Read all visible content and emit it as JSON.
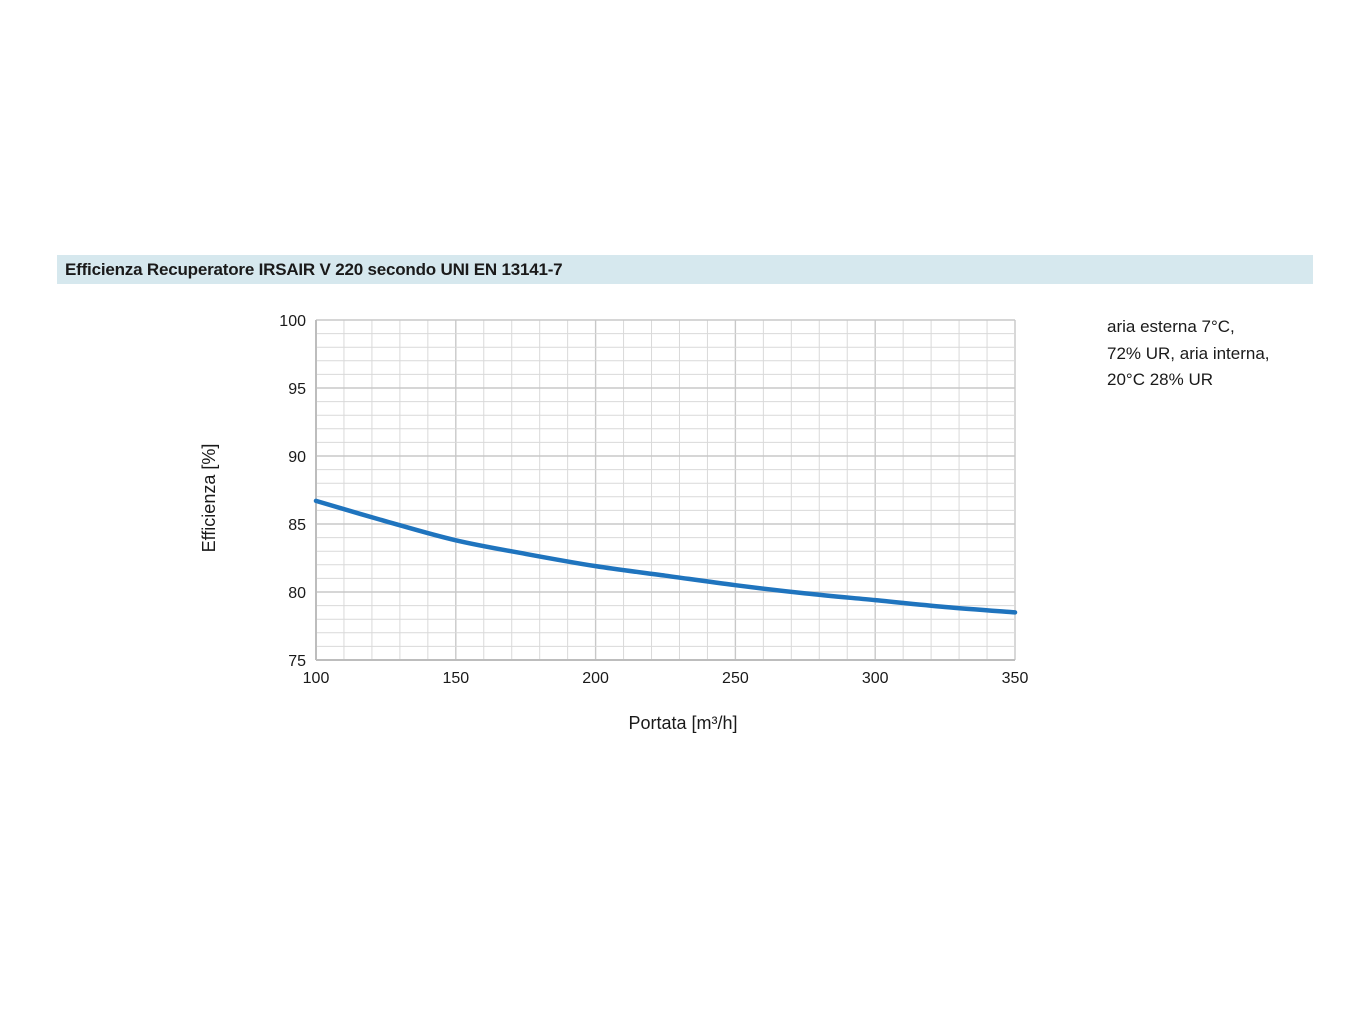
{
  "header": {
    "title": "Efficienza Recuperatore IRSAIR V 220 secondo UNI EN 13141-7"
  },
  "note": {
    "lines": [
      "aria esterna 7°C,",
      "72% UR, aria interna,",
      "20°C 28% UR"
    ]
  },
  "colors": {
    "series": "#1f74be",
    "grid_major": "#c8c8c8",
    "grid_minor": "#d9d9d9",
    "title_band": "#d6e8ee"
  },
  "chart_data": {
    "type": "line",
    "title": "Efficienza Recuperatore IRSAIR V 220 secondo UNI EN 13141-7",
    "xlabel": "Portata [m³/h]",
    "ylabel": "Efficienza [%]",
    "xlim": [
      100,
      350
    ],
    "ylim": [
      75,
      100
    ],
    "xticks": [
      100,
      150,
      200,
      250,
      300,
      350
    ],
    "yticks": [
      75,
      80,
      85,
      90,
      95,
      100
    ],
    "grid": true,
    "series": [
      {
        "x": [
          100,
          125,
          150,
          175,
          200,
          225,
          250,
          275,
          300,
          325,
          350
        ],
        "y": [
          86.7,
          85.2,
          83.8,
          82.8,
          81.9,
          81.2,
          80.5,
          79.9,
          79.4,
          78.9,
          78.5
        ]
      }
    ]
  }
}
